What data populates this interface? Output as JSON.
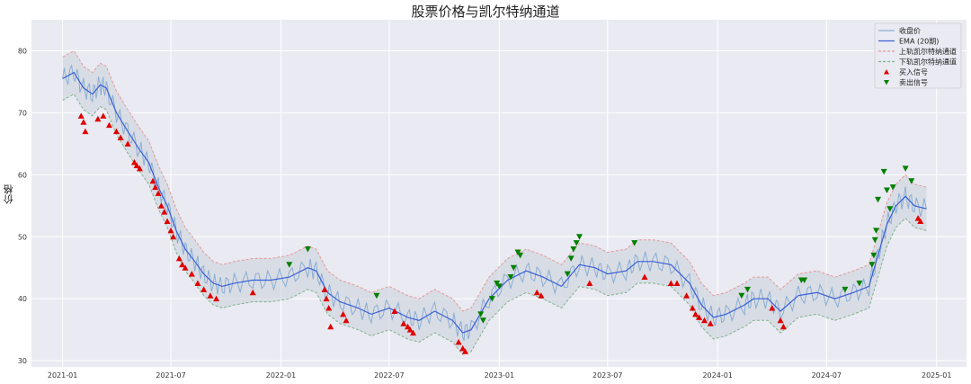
{
  "chart_data": {
    "type": "line",
    "title": "股票价格与凯尔特纳通道",
    "xlabel": "",
    "ylabel": "价格",
    "x_ticks": [
      "2021-01",
      "2021-07",
      "2022-01",
      "2022-07",
      "2023-01",
      "2023-07",
      "2024-01",
      "2024-07",
      "2025-01"
    ],
    "y_ticks": [
      30,
      40,
      50,
      60,
      70,
      80
    ],
    "xlim": [
      "2020-11-10",
      "2025-02-20"
    ],
    "ylim": [
      29,
      85
    ],
    "grid": true,
    "legend_position": "top-right",
    "series": [
      {
        "name": "收盘价",
        "color": "#8aaed4",
        "style": "solid"
      },
      {
        "name": "EMA (20期)",
        "color": "#3a5fd6",
        "style": "solid"
      },
      {
        "name": "上轨凯尔特纳通道",
        "color": "#e39a9a",
        "style": "dashed"
      },
      {
        "name": "下轨凯尔特纳通道",
        "color": "#7fb38f",
        "style": "dashed"
      },
      {
        "name": "买入信号",
        "color": "#e00000",
        "marker": "triangle-up"
      },
      {
        "name": "卖出信号",
        "color": "#008000",
        "marker": "triangle-down"
      }
    ],
    "ema_points": [
      [
        "2021-01-01",
        75.5
      ],
      [
        "2021-01-20",
        76.5
      ],
      [
        "2021-02-05",
        74
      ],
      [
        "2021-02-20",
        73
      ],
      [
        "2021-03-05",
        74.5
      ],
      [
        "2021-03-15",
        74
      ],
      [
        "2021-04-01",
        70
      ],
      [
        "2021-04-20",
        67
      ],
      [
        "2021-05-10",
        64
      ],
      [
        "2021-05-25",
        62
      ],
      [
        "2021-06-10",
        58
      ],
      [
        "2021-06-25",
        55
      ],
      [
        "2021-07-10",
        51
      ],
      [
        "2021-07-25",
        48
      ],
      [
        "2021-08-10",
        46
      ],
      [
        "2021-08-25",
        44
      ],
      [
        "2021-09-10",
        42.5
      ],
      [
        "2021-09-25",
        42
      ],
      [
        "2021-10-15",
        42.5
      ],
      [
        "2021-11-15",
        43
      ],
      [
        "2021-12-15",
        43
      ],
      [
        "2022-01-15",
        43.5
      ],
      [
        "2022-02-15",
        45
      ],
      [
        "2022-03-01",
        44.5
      ],
      [
        "2022-03-20",
        41
      ],
      [
        "2022-04-10",
        39.5
      ],
      [
        "2022-05-10",
        38.5
      ],
      [
        "2022-06-01",
        37.5
      ],
      [
        "2022-07-01",
        38.5
      ],
      [
        "2022-08-01",
        37
      ],
      [
        "2022-08-20",
        36.5
      ],
      [
        "2022-09-15",
        38
      ],
      [
        "2022-10-15",
        36.5
      ],
      [
        "2022-11-01",
        34.5
      ],
      [
        "2022-11-15",
        35
      ],
      [
        "2022-12-15",
        40
      ],
      [
        "2023-01-15",
        43
      ],
      [
        "2023-02-15",
        44.5
      ],
      [
        "2023-03-15",
        43.5
      ],
      [
        "2023-04-15",
        42
      ],
      [
        "2023-05-15",
        45.5
      ],
      [
        "2023-06-10",
        45
      ],
      [
        "2023-07-01",
        44
      ],
      [
        "2023-08-01",
        44.5
      ],
      [
        "2023-08-20",
        46
      ],
      [
        "2023-09-15",
        46
      ],
      [
        "2023-10-15",
        45.5
      ],
      [
        "2023-11-15",
        42.5
      ],
      [
        "2023-12-05",
        39
      ],
      [
        "2023-12-25",
        37
      ],
      [
        "2024-01-15",
        37.5
      ],
      [
        "2024-02-15",
        39
      ],
      [
        "2024-03-01",
        40
      ],
      [
        "2024-03-25",
        40
      ],
      [
        "2024-04-15",
        38
      ],
      [
        "2024-05-15",
        40.5
      ],
      [
        "2024-06-15",
        41
      ],
      [
        "2024-07-15",
        40
      ],
      [
        "2024-08-15",
        41
      ],
      [
        "2024-09-10",
        42
      ],
      [
        "2024-09-25",
        47
      ],
      [
        "2024-10-10",
        52
      ],
      [
        "2024-10-25",
        55
      ],
      [
        "2024-11-10",
        56.5
      ],
      [
        "2024-11-25",
        55
      ],
      [
        "2024-12-15",
        54.5
      ]
    ],
    "band_width": 3.5,
    "buy_signals": [
      [
        "2021-02-01",
        69.5
      ],
      [
        "2021-02-05",
        68.5
      ],
      [
        "2021-02-08",
        67
      ],
      [
        "2021-03-01",
        69
      ],
      [
        "2021-03-10",
        69.5
      ],
      [
        "2021-03-20",
        68
      ],
      [
        "2021-04-01",
        67
      ],
      [
        "2021-04-08",
        66
      ],
      [
        "2021-04-20",
        65
      ],
      [
        "2021-05-01",
        62
      ],
      [
        "2021-05-05",
        61.5
      ],
      [
        "2021-05-10",
        61
      ],
      [
        "2021-06-01",
        59
      ],
      [
        "2021-06-05",
        58
      ],
      [
        "2021-06-10",
        57
      ],
      [
        "2021-06-15",
        55
      ],
      [
        "2021-06-20",
        54
      ],
      [
        "2021-06-25",
        52.5
      ],
      [
        "2021-07-01",
        51
      ],
      [
        "2021-07-05",
        50
      ],
      [
        "2021-07-15",
        46.5
      ],
      [
        "2021-07-20",
        45.5
      ],
      [
        "2021-07-25",
        45
      ],
      [
        "2021-08-05",
        44
      ],
      [
        "2021-08-15",
        42.5
      ],
      [
        "2021-08-25",
        41.5
      ],
      [
        "2021-09-05",
        40.5
      ],
      [
        "2021-09-15",
        40
      ],
      [
        "2021-11-15",
        41
      ],
      [
        "2022-03-15",
        41.5
      ],
      [
        "2022-03-18",
        40
      ],
      [
        "2022-03-22",
        38.5
      ],
      [
        "2022-03-25",
        35.5
      ],
      [
        "2022-04-15",
        37.5
      ],
      [
        "2022-04-20",
        36.5
      ],
      [
        "2022-07-10",
        38
      ],
      [
        "2022-07-25",
        36
      ],
      [
        "2022-08-01",
        35.5
      ],
      [
        "2022-08-05",
        35
      ],
      [
        "2022-08-10",
        34.5
      ],
      [
        "2022-10-25",
        33
      ],
      [
        "2022-11-01",
        32
      ],
      [
        "2022-11-05",
        31.5
      ],
      [
        "2023-03-05",
        41
      ],
      [
        "2023-03-12",
        40.5
      ],
      [
        "2023-06-01",
        42.5
      ],
      [
        "2023-09-01",
        43.5
      ],
      [
        "2023-10-15",
        42.5
      ],
      [
        "2023-10-25",
        42.5
      ],
      [
        "2023-11-10",
        40.5
      ],
      [
        "2023-11-20",
        38.5
      ],
      [
        "2023-11-25",
        37.5
      ],
      [
        "2023-12-01",
        37
      ],
      [
        "2023-12-10",
        36.5
      ],
      [
        "2023-12-20",
        36
      ],
      [
        "2024-04-01",
        38.5
      ],
      [
        "2024-04-15",
        36.5
      ],
      [
        "2024-04-20",
        35.5
      ],
      [
        "2024-12-01",
        53
      ],
      [
        "2024-12-05",
        52.5
      ]
    ],
    "sell_signals": [
      [
        "2022-01-15",
        45.5
      ],
      [
        "2022-02-15",
        48
      ],
      [
        "2022-06-10",
        40.5
      ],
      [
        "2022-12-01",
        37.5
      ],
      [
        "2022-12-05",
        36.5
      ],
      [
        "2022-12-20",
        40
      ],
      [
        "2022-12-28",
        42.5
      ],
      [
        "2023-01-01",
        42
      ],
      [
        "2023-01-20",
        43.5
      ],
      [
        "2023-01-25",
        45
      ],
      [
        "2023-02-01",
        47.5
      ],
      [
        "2023-02-05",
        47
      ],
      [
        "2023-04-25",
        44
      ],
      [
        "2023-05-01",
        46.5
      ],
      [
        "2023-05-05",
        48
      ],
      [
        "2023-05-10",
        49
      ],
      [
        "2023-05-15",
        50
      ],
      [
        "2023-08-15",
        49
      ],
      [
        "2024-02-10",
        40.5
      ],
      [
        "2024-02-20",
        41.5
      ],
      [
        "2024-05-20",
        43
      ],
      [
        "2024-05-25",
        43
      ],
      [
        "2024-08-01",
        41.5
      ],
      [
        "2024-08-25",
        42.5
      ],
      [
        "2024-09-15",
        45.5
      ],
      [
        "2024-09-18",
        47
      ],
      [
        "2024-09-20",
        49.5
      ],
      [
        "2024-09-22",
        51
      ],
      [
        "2024-09-25",
        56
      ],
      [
        "2024-10-05",
        60.5
      ],
      [
        "2024-10-10",
        57.5
      ],
      [
        "2024-10-15",
        54.5
      ],
      [
        "2024-10-20",
        58
      ],
      [
        "2024-11-10",
        61
      ],
      [
        "2024-11-20",
        59
      ]
    ]
  }
}
